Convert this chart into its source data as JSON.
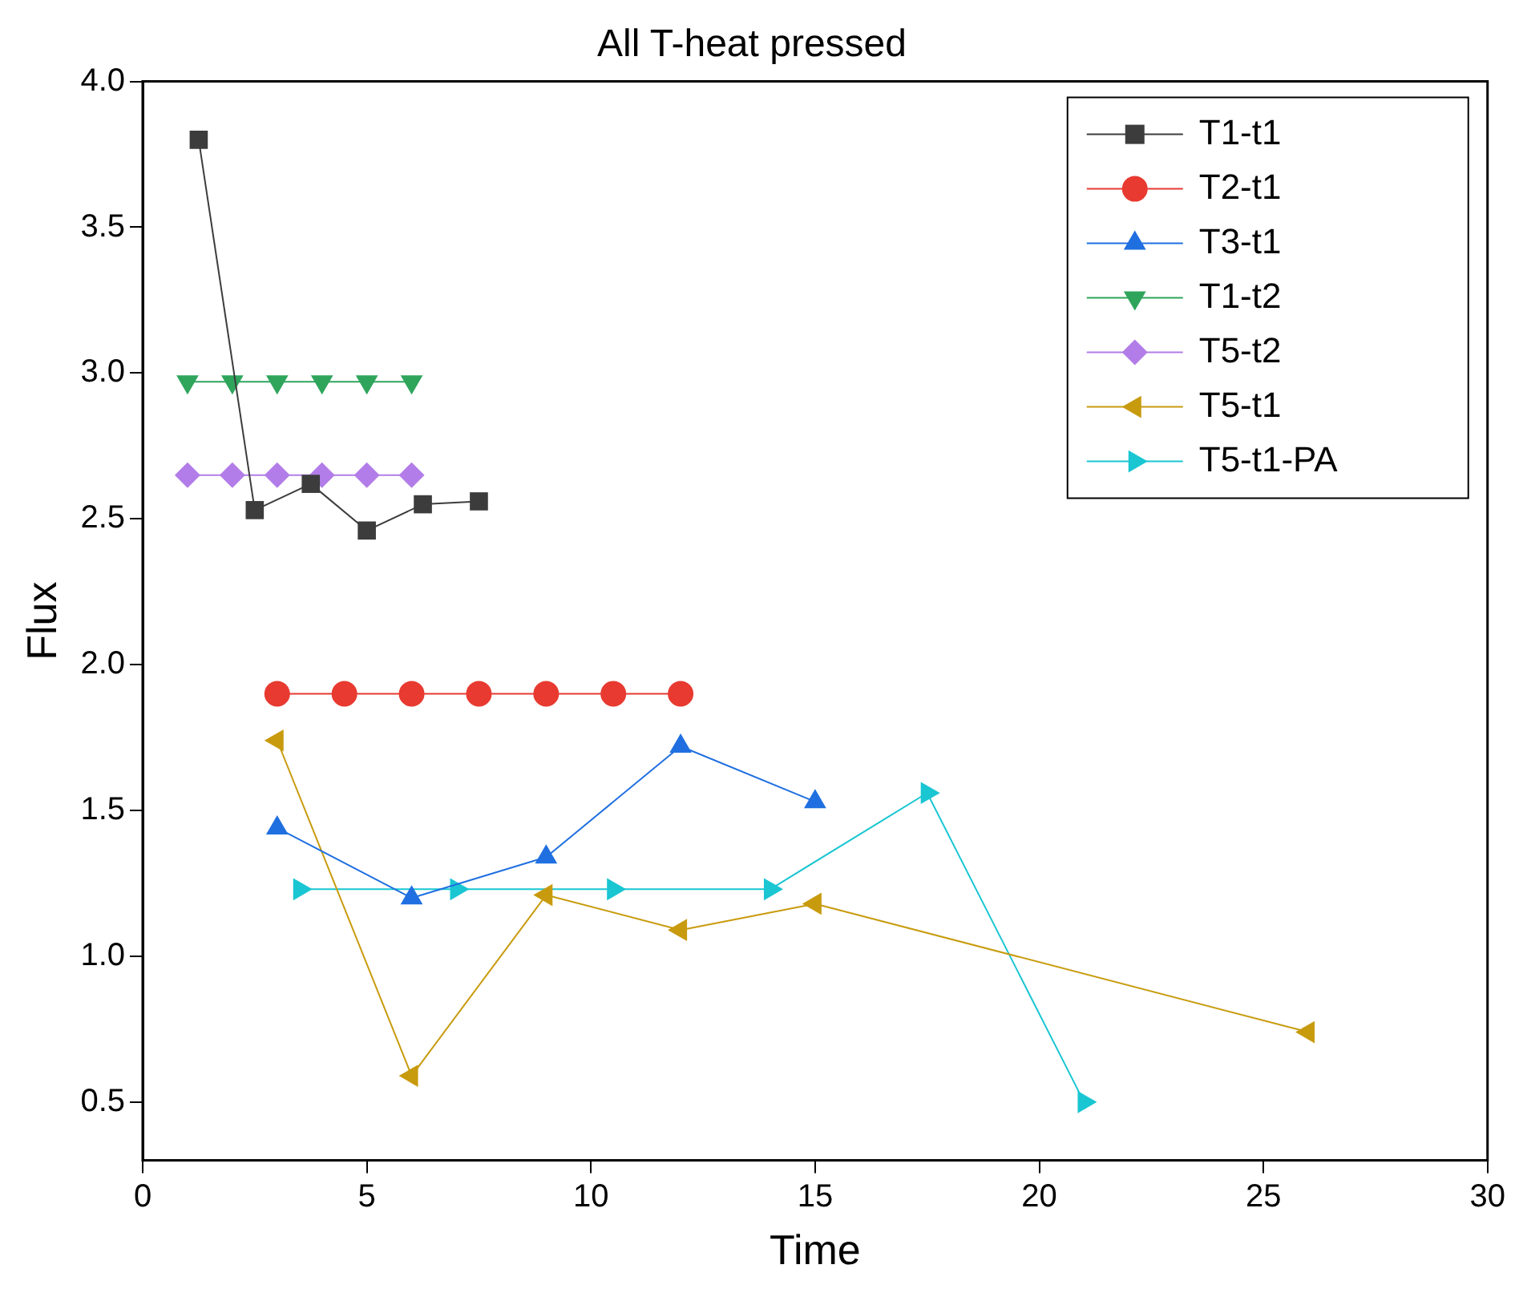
{
  "chart_data": {
    "type": "line",
    "title": "All T-heat pressed",
    "xlabel": "Time",
    "ylabel": "Flux",
    "xlim": [
      0,
      30
    ],
    "xticks": [
      0,
      5,
      10,
      15,
      20,
      25,
      30
    ],
    "ylim": [
      0.3,
      4.0
    ],
    "yticks": [
      {
        "value": 0.5,
        "label": "0.5"
      },
      {
        "value": 1.0,
        "label": "1.0"
      },
      {
        "value": 1.5,
        "label": "1.5"
      },
      {
        "value": 2.0,
        "label": "2.0"
      },
      {
        "value": 2.5,
        "label": "2.5"
      },
      {
        "value": 3.0,
        "label": "3.0"
      },
      {
        "value": 3.5,
        "label": "3.5"
      },
      {
        "value": 4.0,
        "label": "4.0"
      }
    ],
    "grid": false,
    "legend": "top right",
    "line_style": "solid",
    "series": [
      {
        "name": "T1-t1",
        "color": "#3c3c3c",
        "marker": "square",
        "x": [
          1.25,
          2.5,
          3.75,
          5,
          6.25,
          7.5
        ],
        "values": [
          3.8,
          2.53,
          2.62,
          2.46,
          2.55,
          2.56
        ]
      },
      {
        "name": "T2-t1",
        "color": "#e83a30",
        "marker": "circle",
        "x": [
          3,
          4.5,
          6,
          7.5,
          9,
          10.5,
          12
        ],
        "values": [
          1.9,
          1.9,
          1.9,
          1.9,
          1.9,
          1.9,
          1.9
        ]
      },
      {
        "name": "T3-t1",
        "color": "#1f6fe0",
        "marker": "triangle",
        "x": [
          3,
          6,
          9,
          12,
          15
        ],
        "values": [
          1.44,
          1.2,
          1.34,
          1.72,
          1.53
        ]
      },
      {
        "name": "T1-t2",
        "color": "#2fa55c",
        "marker": "triangle-down",
        "x": [
          1,
          2,
          3,
          4,
          5,
          6
        ],
        "values": [
          2.97,
          2.97,
          2.97,
          2.97,
          2.97,
          2.97
        ]
      },
      {
        "name": "T5-t2",
        "color": "#b27de8",
        "marker": "diamond",
        "x": [
          1,
          2,
          3,
          4,
          5,
          6
        ],
        "values": [
          2.65,
          2.65,
          2.65,
          2.65,
          2.65,
          2.65
        ]
      },
      {
        "name": "T5-t1",
        "color": "#c89b0e",
        "marker": "triangle-left",
        "x": [
          3,
          6,
          9,
          12,
          15,
          26
        ],
        "values": [
          1.74,
          0.59,
          1.21,
          1.09,
          1.18,
          0.74
        ]
      },
      {
        "name": "T5-t1-PA",
        "color": "#19c6d2",
        "marker": "triangle-right",
        "x": [
          3.5,
          7,
          10.5,
          14,
          17.5,
          21
        ],
        "values": [
          1.23,
          1.23,
          1.23,
          1.23,
          1.56,
          0.5
        ]
      }
    ]
  }
}
